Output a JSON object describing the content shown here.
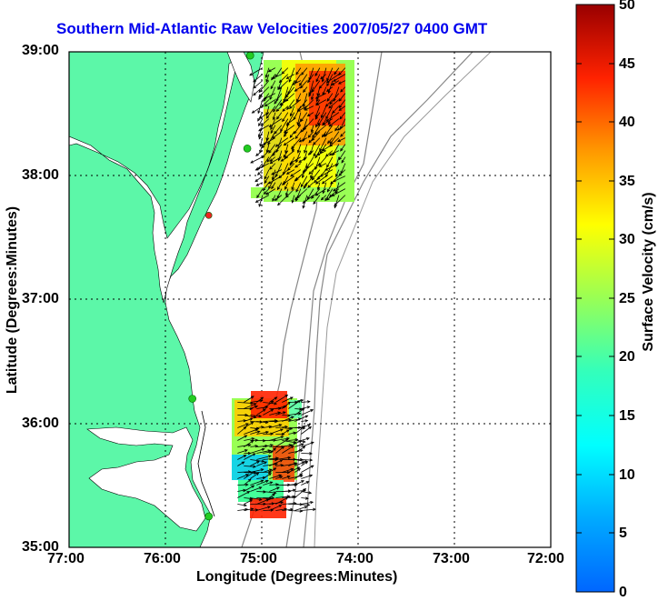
{
  "title": "Southern Mid-Atlantic Raw Velocities 2007/05/27 0400 GMT",
  "x_axis": {
    "label": "Longitude (Degrees:Minutes)",
    "ticks": [
      "77:00",
      "76:00",
      "75:00",
      "74:00",
      "73:00",
      "72:00"
    ]
  },
  "y_axis": {
    "label": "Latitude (Degrees:Minutes)",
    "ticks": [
      "39:00",
      "38:00",
      "37:00",
      "36:00",
      "35:00"
    ]
  },
  "colorbar": {
    "label": "Surface Velocity (cm/s)",
    "ticks": [
      "50",
      "45",
      "40",
      "35",
      "30",
      "25",
      "20",
      "15",
      "10",
      "5",
      "0"
    ],
    "range": [
      0,
      50
    ],
    "colormap": "jet"
  },
  "colors": {
    "land": "#5cf7a8",
    "title": "#0000ee",
    "station": "#22cc22",
    "station_highlight": "#ee2222"
  },
  "chart_data": {
    "type": "heatmap",
    "extent": {
      "lon": [
        -77,
        -72
      ],
      "lat": [
        35,
        39
      ]
    },
    "grid": "dotted",
    "stations": [
      {
        "lon": -75.12,
        "lat": 38.97,
        "status": "active"
      },
      {
        "lon": -75.15,
        "lat": 38.22,
        "status": "active"
      },
      {
        "lon": -75.55,
        "lat": 37.68,
        "status": "highlight"
      },
      {
        "lon": -75.72,
        "lat": 36.2,
        "status": "active"
      },
      {
        "lon": -75.55,
        "lat": 35.25,
        "status": "active"
      }
    ],
    "regions": [
      {
        "name": "northern-field",
        "lon_range": [
          -75.02,
          -74.08
        ],
        "lat_range": [
          37.82,
          38.9
        ],
        "avg_direction": "southwest",
        "max_speed": 48
      },
      {
        "name": "southern-field",
        "lon_range": [
          -75.28,
          -74.58
        ],
        "lat_range": [
          35.25,
          36.2
        ],
        "avg_direction": "east-southeast",
        "max_speed": 45
      }
    ]
  }
}
